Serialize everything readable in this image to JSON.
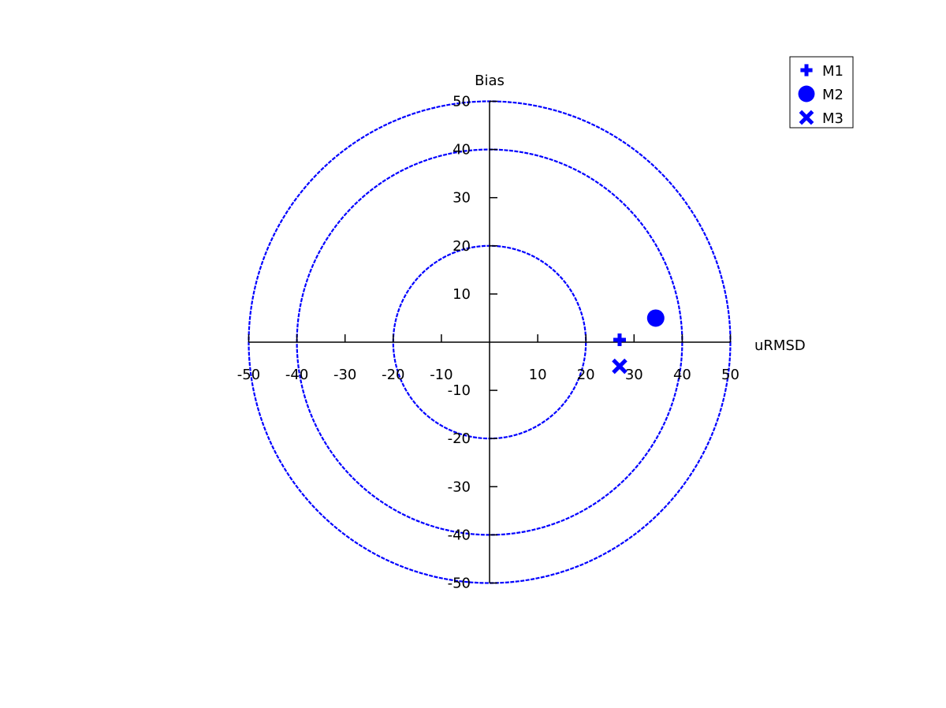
{
  "chart_data": {
    "type": "scatter",
    "xlabel": "uRMSD",
    "ylabel": "Bias",
    "xlim": [
      -50,
      50
    ],
    "ylim": [
      -50,
      50
    ],
    "x_ticks": [
      -50,
      -40,
      -30,
      -20,
      -10,
      10,
      20,
      30,
      40,
      50
    ],
    "y_ticks": [
      -50,
      -40,
      -30,
      -20,
      -10,
      10,
      20,
      30,
      40,
      50
    ],
    "x_tick_labels": [
      "-50",
      "-40",
      "-30",
      "-20",
      "-10",
      "10",
      "20",
      "30",
      "40",
      "50"
    ],
    "y_tick_labels": [
      "-50",
      "-40",
      "-30",
      "-20",
      "-10",
      "10",
      "20",
      "30",
      "40",
      "50"
    ],
    "circles": [
      20,
      40,
      50
    ],
    "circle_style": "dashed",
    "grid": false,
    "legend_position": "top-right",
    "colors": {
      "marker": "#0000ff",
      "circle": "#0000ff",
      "axis": "#000000"
    },
    "series": [
      {
        "name": "M1",
        "marker": "plus",
        "x": 27,
        "y": 0.5
      },
      {
        "name": "M2",
        "marker": "circle",
        "x": 34.5,
        "y": 5
      },
      {
        "name": "M3",
        "marker": "x",
        "x": 27,
        "y": -5
      }
    ]
  }
}
